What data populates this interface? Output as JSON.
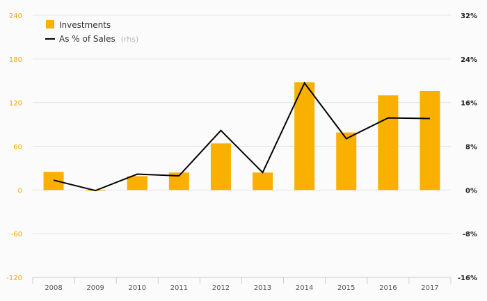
{
  "chart_data": {
    "type": "bar",
    "categories": [
      "2008",
      "2009",
      "2010",
      "2011",
      "2012",
      "2013",
      "2014",
      "2015",
      "2016",
      "2017"
    ],
    "series": [
      {
        "name": "Investments",
        "type": "bar",
        "axis": "left",
        "color": "#f9b000",
        "values": [
          25,
          -1,
          19,
          24,
          64,
          24,
          148,
          79,
          130,
          136
        ]
      },
      {
        "name": "As % of Sales",
        "legend_suffix": "(rhs)",
        "type": "line",
        "axis": "right",
        "color": "#000000",
        "values": [
          1.8,
          -0.1,
          2.9,
          2.6,
          10.9,
          3.2,
          19.6,
          9.4,
          13.2,
          13.1
        ]
      }
    ],
    "yleft": {
      "ylim": [
        -120,
        240
      ],
      "ticks": [
        "240",
        "180",
        "120",
        "60",
        "0",
        "-60",
        "-120"
      ],
      "tick_values": [
        240,
        180,
        120,
        60,
        0,
        -60,
        -120
      ],
      "color": "#f2a900"
    },
    "yright": {
      "ylim": [
        -16,
        32
      ],
      "ticks": [
        "32%",
        "24%",
        "16%",
        "8%",
        "0%",
        "-8%",
        "-16%"
      ],
      "tick_values": [
        32,
        24,
        16,
        8,
        0,
        -8,
        -16
      ]
    },
    "grid": true,
    "legend_position": "top-left"
  }
}
